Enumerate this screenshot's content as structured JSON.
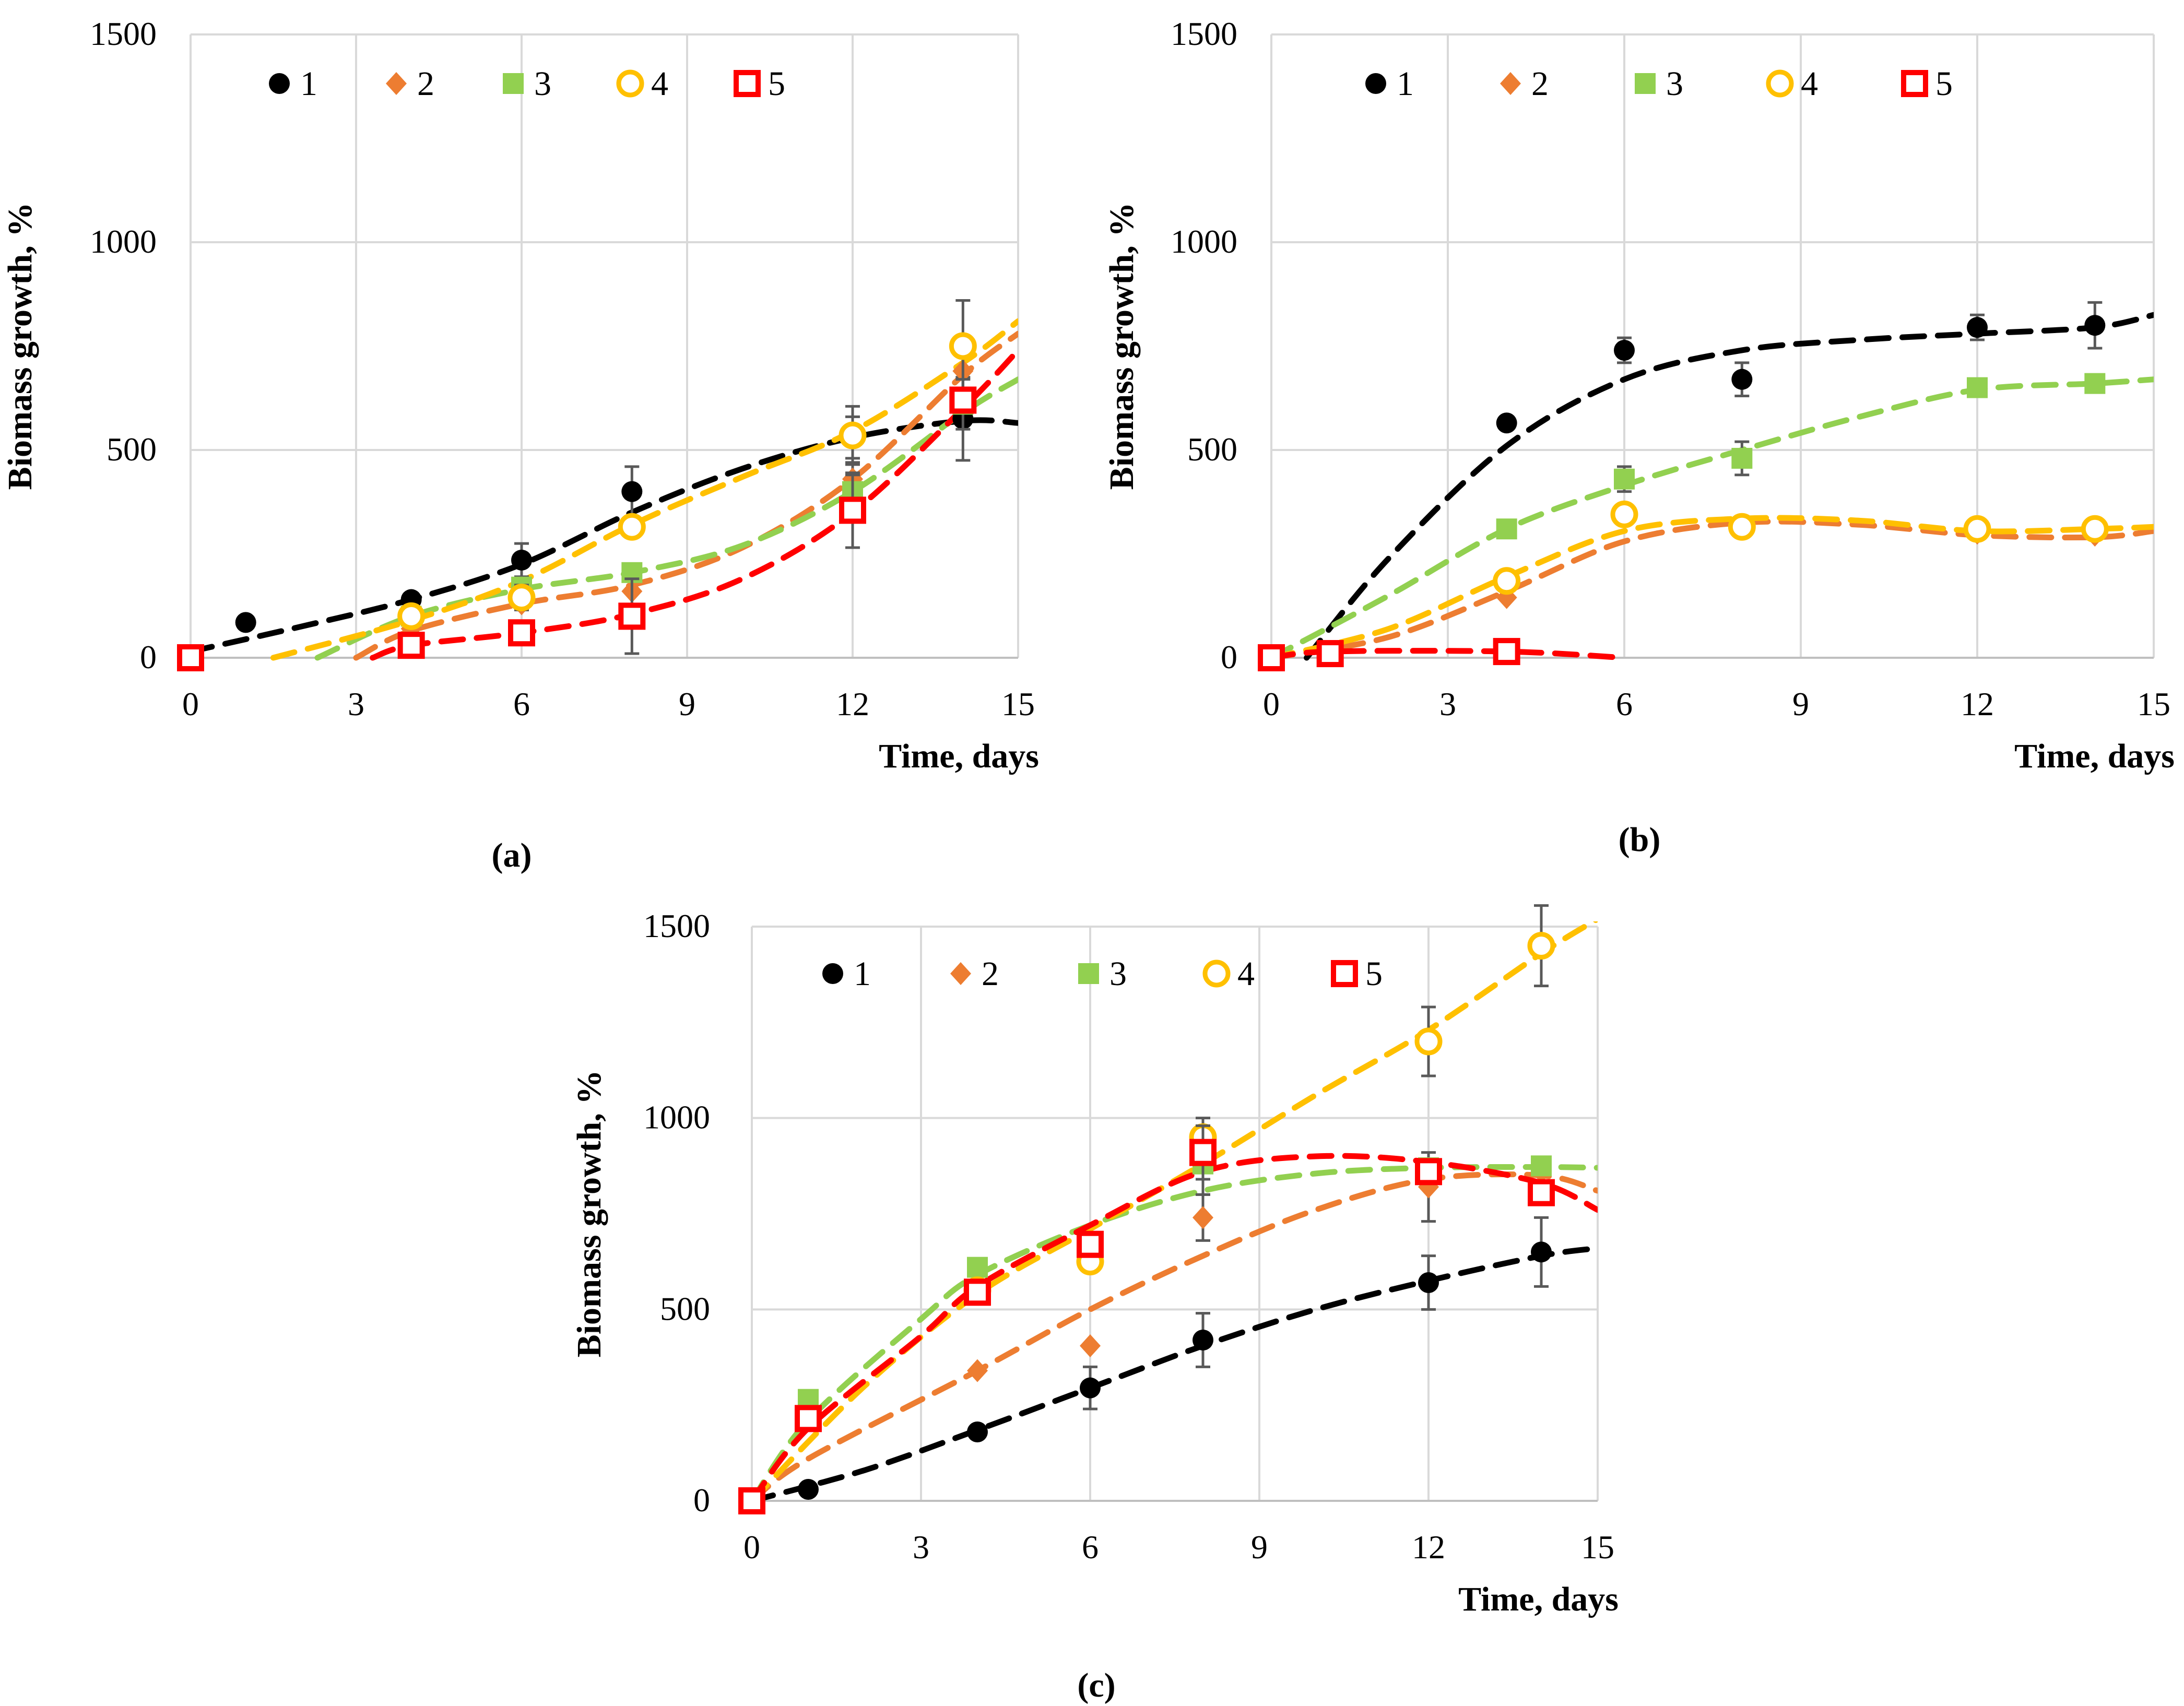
{
  "chart_data": [
    {
      "id": "a",
      "type": "scatter",
      "panel_label": "(a)",
      "xlabel": "Time, days",
      "ylabel": "Biomass growth, %",
      "xlim": [
        0,
        15
      ],
      "ylim": [
        0,
        1500
      ],
      "xticks": [
        "0",
        "3",
        "6",
        "9",
        "12",
        "15"
      ],
      "yticks": [
        "0",
        "500",
        "1000",
        "1500"
      ],
      "grid": true,
      "legend_position": "top",
      "series": [
        {
          "name": "1",
          "marker": "circle",
          "color": "#000000",
          "x": [
            0,
            1,
            4,
            6,
            8,
            12,
            14
          ],
          "y": [
            0,
            85,
            140,
            235,
            400,
            530,
            575
          ],
          "err": [
            0,
            0,
            0,
            40,
            60,
            50,
            100
          ],
          "trend": [
            [
              0,
              15
            ],
            [
              2,
              75
            ],
            [
              4,
              140
            ],
            [
              6,
              225
            ],
            [
              8,
              350
            ],
            [
              10,
              455
            ],
            [
              12,
              530
            ],
            [
              14,
              570
            ],
            [
              15,
              565
            ]
          ]
        },
        {
          "name": "2",
          "marker": "diamond",
          "color": "#ED7D31",
          "x": [
            0,
            4,
            6,
            8,
            12,
            14
          ],
          "y": [
            0,
            70,
            130,
            160,
            430,
            690
          ],
          "err": [
            0,
            0,
            0,
            0,
            40,
            60
          ],
          "trend": [
            [
              3,
              0
            ],
            [
              4,
              65
            ],
            [
              6,
              130
            ],
            [
              8,
              175
            ],
            [
              10,
              265
            ],
            [
              12,
              430
            ],
            [
              14,
              680
            ],
            [
              15,
              780
            ]
          ]
        },
        {
          "name": "3",
          "marker": "square-filled",
          "color": "#92D050",
          "x": [
            0,
            4,
            6,
            8,
            12,
            14
          ],
          "y": [
            0,
            100,
            170,
            205,
            400,
            610
          ],
          "err": [
            0,
            0,
            0,
            0,
            40,
            60
          ],
          "trend": [
            [
              2.3,
              0
            ],
            [
              4,
              100
            ],
            [
              6,
              165
            ],
            [
              8,
              205
            ],
            [
              10,
              270
            ],
            [
              12,
              400
            ],
            [
              14,
              590
            ],
            [
              15,
              670
            ]
          ]
        },
        {
          "name": "4",
          "marker": "circle-open",
          "color": "#FFC000",
          "x": [
            4,
            6,
            8,
            12,
            14
          ],
          "y": [
            100,
            145,
            315,
            535,
            750
          ],
          "err": [
            0,
            30,
            0,
            70,
            110
          ],
          "trend": [
            [
              1.5,
              0
            ],
            [
              4,
              90
            ],
            [
              6,
              185
            ],
            [
              8,
              320
            ],
            [
              10,
              435
            ],
            [
              12,
              545
            ],
            [
              14,
              710
            ],
            [
              15,
              810
            ]
          ]
        },
        {
          "name": "5",
          "marker": "square-open",
          "color": "#FF0000",
          "x": [
            0,
            4,
            6,
            8,
            12,
            14
          ],
          "y": [
            0,
            30,
            60,
            100,
            355,
            620
          ],
          "err": [
            0,
            0,
            0,
            90,
            90,
            0
          ],
          "trend": [
            [
              3.3,
              0
            ],
            [
              4,
              30
            ],
            [
              6,
              60
            ],
            [
              8,
              105
            ],
            [
              10,
              190
            ],
            [
              12,
              350
            ],
            [
              14,
              600
            ],
            [
              15,
              740
            ]
          ]
        }
      ]
    },
    {
      "id": "b",
      "type": "scatter",
      "panel_label": "(b)",
      "xlabel": "Time, days",
      "ylabel": "Biomass growth, %",
      "xlim": [
        0,
        15
      ],
      "ylim": [
        0,
        1500
      ],
      "xticks": [
        "0",
        "3",
        "6",
        "9",
        "12",
        "15"
      ],
      "yticks": [
        "0",
        "500",
        "1000",
        "1500"
      ],
      "grid": true,
      "legend_position": "top",
      "series": [
        {
          "name": "1",
          "marker": "circle",
          "color": "#000000",
          "x": [
            0,
            4,
            6,
            8,
            12,
            14
          ],
          "y": [
            0,
            565,
            740,
            670,
            795,
            800
          ],
          "err": [
            0,
            0,
            30,
            40,
            30,
            55
          ],
          "trend": [
            [
              0.6,
              0
            ],
            [
              2,
              240
            ],
            [
              4,
              510
            ],
            [
              6,
              670
            ],
            [
              8,
              740
            ],
            [
              10,
              765
            ],
            [
              12,
              780
            ],
            [
              14,
              795
            ],
            [
              15,
              825
            ]
          ]
        },
        {
          "name": "2",
          "marker": "diamond",
          "color": "#ED7D31",
          "x": [
            0,
            4,
            8,
            12,
            14
          ],
          "y": [
            0,
            145,
            310,
            300,
            295
          ],
          "err": [
            0,
            0,
            0,
            0,
            0
          ],
          "trend": [
            [
              0,
              0
            ],
            [
              2,
              50
            ],
            [
              4,
              160
            ],
            [
              6,
              280
            ],
            [
              8,
              325
            ],
            [
              10,
              320
            ],
            [
              12,
              295
            ],
            [
              14,
              290
            ],
            [
              15,
              305
            ]
          ]
        },
        {
          "name": "3",
          "marker": "square-filled",
          "color": "#92D050",
          "x": [
            0,
            4,
            6,
            8,
            12,
            14
          ],
          "y": [
            0,
            310,
            430,
            480,
            650,
            660
          ],
          "err": [
            0,
            0,
            30,
            40,
            0,
            0
          ],
          "trend": [
            [
              0,
              0
            ],
            [
              2,
              150
            ],
            [
              4,
              310
            ],
            [
              6,
              415
            ],
            [
              8,
              500
            ],
            [
              10,
              580
            ],
            [
              12,
              645
            ],
            [
              14,
              660
            ],
            [
              15,
              670
            ]
          ]
        },
        {
          "name": "4",
          "marker": "circle-open",
          "color": "#FFC000",
          "x": [
            4,
            6,
            8,
            12,
            14
          ],
          "y": [
            185,
            345,
            315,
            310,
            310
          ],
          "err": [
            0,
            0,
            0,
            0,
            0
          ],
          "trend": [
            [
              0,
              0
            ],
            [
              2,
              70
            ],
            [
              4,
              195
            ],
            [
              6,
              305
            ],
            [
              8,
              335
            ],
            [
              10,
              330
            ],
            [
              12,
              305
            ],
            [
              14,
              310
            ],
            [
              15,
              315
            ]
          ]
        },
        {
          "name": "5",
          "marker": "square-open",
          "color": "#FF0000",
          "x": [
            0,
            1,
            4
          ],
          "y": [
            0,
            10,
            15
          ],
          "err": [
            0,
            0,
            0
          ],
          "trend": [
            [
              0,
              0
            ],
            [
              1,
              15
            ],
            [
              4,
              15
            ],
            [
              6,
              0
            ]
          ]
        }
      ]
    },
    {
      "id": "c",
      "type": "scatter",
      "panel_label": "(c)",
      "xlabel": "Time, days",
      "ylabel": "Biomass growth, %",
      "xlim": [
        0,
        15
      ],
      "ylim": [
        0,
        1500
      ],
      "xticks": [
        "0",
        "3",
        "6",
        "9",
        "12",
        "15"
      ],
      "yticks": [
        "0",
        "500",
        "1000",
        "1500"
      ],
      "grid": true,
      "legend_position": "top",
      "series": [
        {
          "name": "1",
          "marker": "circle",
          "color": "#000000",
          "x": [
            0,
            1,
            4,
            6,
            8,
            12,
            14
          ],
          "y": [
            0,
            30,
            180,
            295,
            420,
            570,
            650
          ],
          "err": [
            0,
            0,
            0,
            55,
            70,
            70,
            90
          ],
          "trend": [
            [
              0,
              0
            ],
            [
              2,
              80
            ],
            [
              4,
              185
            ],
            [
              6,
              295
            ],
            [
              8,
              405
            ],
            [
              10,
              500
            ],
            [
              12,
              575
            ],
            [
              14,
              640
            ],
            [
              15,
              660
            ]
          ]
        },
        {
          "name": "2",
          "marker": "diamond",
          "color": "#ED7D31",
          "x": [
            0,
            4,
            6,
            8,
            12,
            14
          ],
          "y": [
            0,
            340,
            405,
            740,
            820,
            860
          ],
          "err": [
            0,
            0,
            0,
            60,
            90,
            0
          ],
          "trend": [
            [
              0,
              0
            ],
            [
              1,
              110
            ],
            [
              4,
              340
            ],
            [
              6,
              500
            ],
            [
              8,
              640
            ],
            [
              10,
              760
            ],
            [
              12,
              840
            ],
            [
              14,
              850
            ],
            [
              15,
              810
            ]
          ]
        },
        {
          "name": "3",
          "marker": "square-filled",
          "color": "#92D050",
          "x": [
            0,
            1,
            4,
            6,
            8,
            12,
            14
          ],
          "y": [
            0,
            265,
            610,
            650,
            880,
            870,
            875
          ],
          "err": [
            0,
            0,
            0,
            0,
            80,
            0,
            0
          ],
          "trend": [
            [
              0,
              0
            ],
            [
              1,
              210
            ],
            [
              3,
              475
            ],
            [
              4,
              590
            ],
            [
              6,
              720
            ],
            [
              8,
              810
            ],
            [
              10,
              855
            ],
            [
              12,
              870
            ],
            [
              14,
              872
            ],
            [
              15,
              870
            ]
          ]
        },
        {
          "name": "4",
          "marker": "circle-open",
          "color": "#FFC000",
          "x": [
            4,
            6,
            8,
            12,
            14
          ],
          "y": [
            550,
            625,
            950,
            1200,
            1450
          ],
          "err": [
            0,
            0,
            50,
            90,
            105
          ],
          "trend": [
            [
              0,
              0
            ],
            [
              2,
              300
            ],
            [
              4,
              540
            ],
            [
              6,
              710
            ],
            [
              8,
              880
            ],
            [
              10,
              1060
            ],
            [
              12,
              1230
            ],
            [
              14,
              1430
            ],
            [
              15,
              1520
            ]
          ]
        },
        {
          "name": "5",
          "marker": "square-open",
          "color": "#FF0000",
          "x": [
            0,
            1,
            4,
            6,
            8,
            12,
            14
          ],
          "y": [
            0,
            215,
            545,
            670,
            910,
            860,
            805
          ],
          "err": [
            0,
            0,
            0,
            0,
            70,
            0,
            0
          ],
          "trend": [
            [
              0,
              0
            ],
            [
              1,
              190
            ],
            [
              3,
              430
            ],
            [
              4,
              560
            ],
            [
              6,
              720
            ],
            [
              8,
              860
            ],
            [
              10,
              900
            ],
            [
              12,
              885
            ],
            [
              14,
              830
            ],
            [
              15,
              760
            ]
          ]
        }
      ]
    }
  ]
}
